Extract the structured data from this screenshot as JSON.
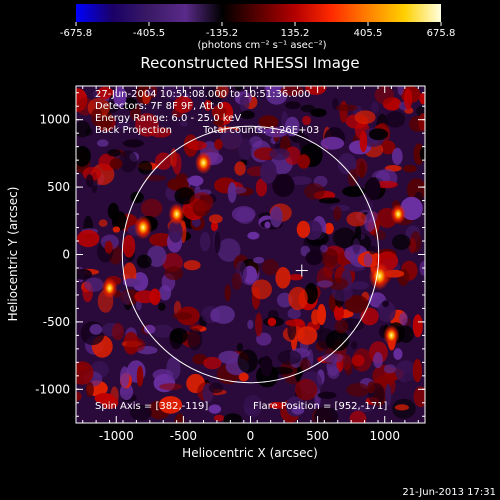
{
  "colorbar": {
    "ticks": [
      "-675.8",
      "-405.5",
      "-135.2",
      "135.2",
      "405.5",
      "675.8"
    ],
    "units": "(photons cm⁻² s⁻¹ asec⁻²)",
    "colors": [
      "#0000ff",
      "#1a0066",
      "#3a1a66",
      "#5a2a8a",
      "#000000",
      "#5a0000",
      "#b40000",
      "#ff2a00",
      "#ff8000",
      "#ffd000",
      "#ffffe0"
    ]
  },
  "chart_data": {
    "type": "heatmap",
    "title": "Reconstructed RHESSI Image",
    "xlabel": "Heliocentric X (arcsec)",
    "ylabel": "Heliocentric Y (arcsec)",
    "xlim": [
      -1300,
      1300
    ],
    "ylim": [
      -1250,
      1250
    ],
    "xticks": [
      -1000,
      -500,
      0,
      500,
      1000
    ],
    "yticks": [
      -1000,
      -500,
      0,
      500,
      1000
    ],
    "solar_limb_radius_arcsec": 955,
    "flare_position": [
      952,
      -171
    ],
    "spin_axis": [
      382,
      -119
    ],
    "bright_sources": [
      {
        "x": 960,
        "y": -160,
        "intensity": 675.8
      },
      {
        "x": -800,
        "y": 200,
        "intensity": 500
      },
      {
        "x": -350,
        "y": 680,
        "intensity": 450
      },
      {
        "x": -550,
        "y": 300,
        "intensity": 420
      },
      {
        "x": 1050,
        "y": -600,
        "intensity": 400
      },
      {
        "x": -1050,
        "y": -250,
        "intensity": 380
      },
      {
        "x": 1100,
        "y": 300,
        "intensity": 350
      }
    ],
    "annotations": [
      "27-Jun-2004 10:51:08.000 to 10:51:36.000",
      "Detectors: 7F 8F 9F, Att 0",
      "Energy Range: 6.0 - 25.0 keV",
      "Back Projection",
      "Total counts: 1.26E+03",
      "Spin Axis = [382,-119]",
      "Flare Position = [952,-171]"
    ],
    "footer": "21-Jun-2013 17:31"
  }
}
